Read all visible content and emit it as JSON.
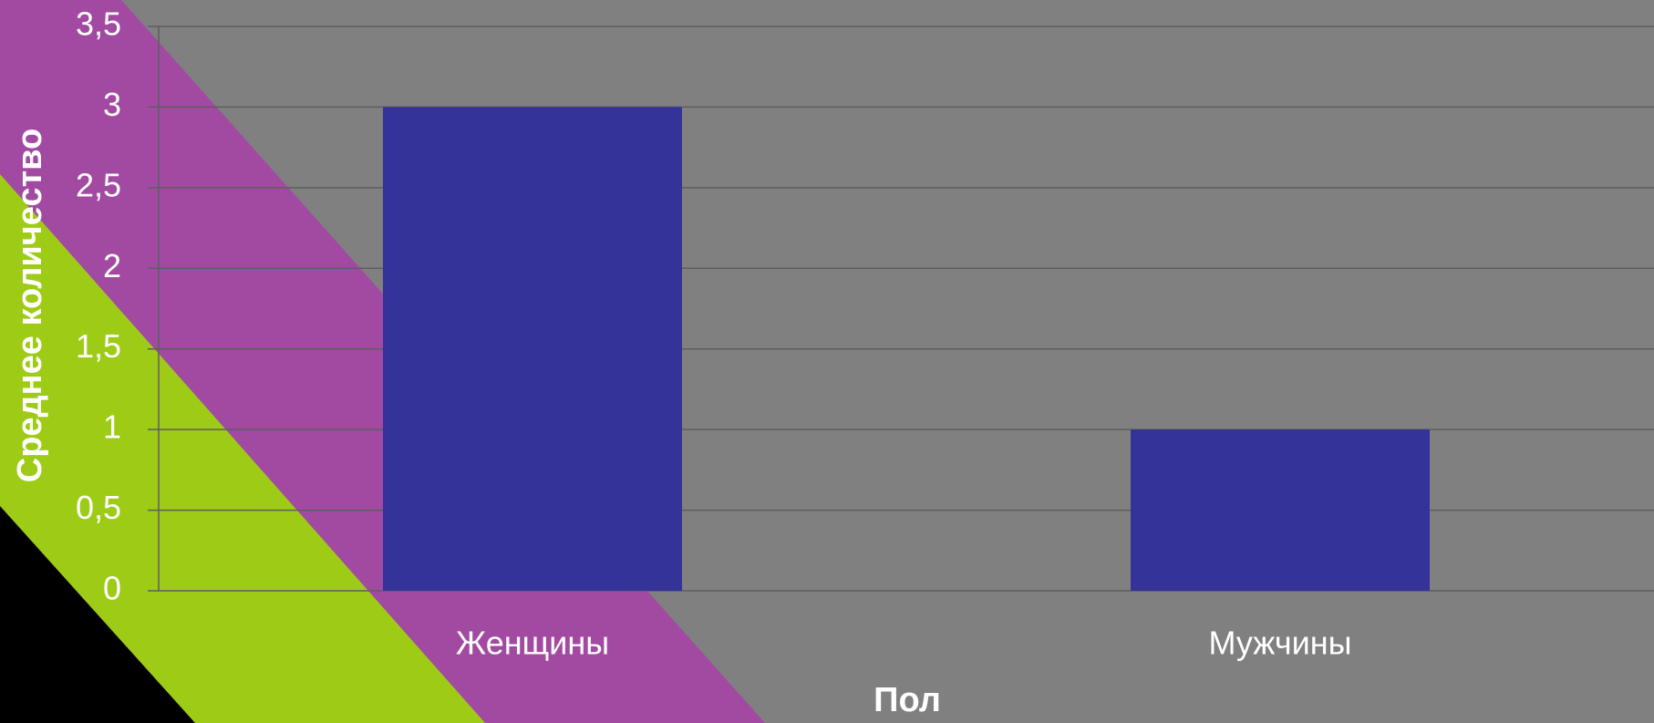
{
  "chart_data": {
    "type": "bar",
    "categories": [
      "Женщины",
      "Мужчины"
    ],
    "values": [
      3,
      1
    ],
    "color": "#333399",
    "ylim": [
      0,
      3.5
    ],
    "yticks": [
      0,
      {
        "value": 0.5,
        "label": "0,5"
      },
      1,
      {
        "value": 1.5,
        "label": "1,5"
      },
      2,
      {
        "value": 2.5,
        "label": "2,5"
      },
      3,
      {
        "value": 3.5,
        "label": "3,5"
      }
    ],
    "grid": true,
    "x_label": "Пол",
    "y_label": "Среднее количество"
  }
}
